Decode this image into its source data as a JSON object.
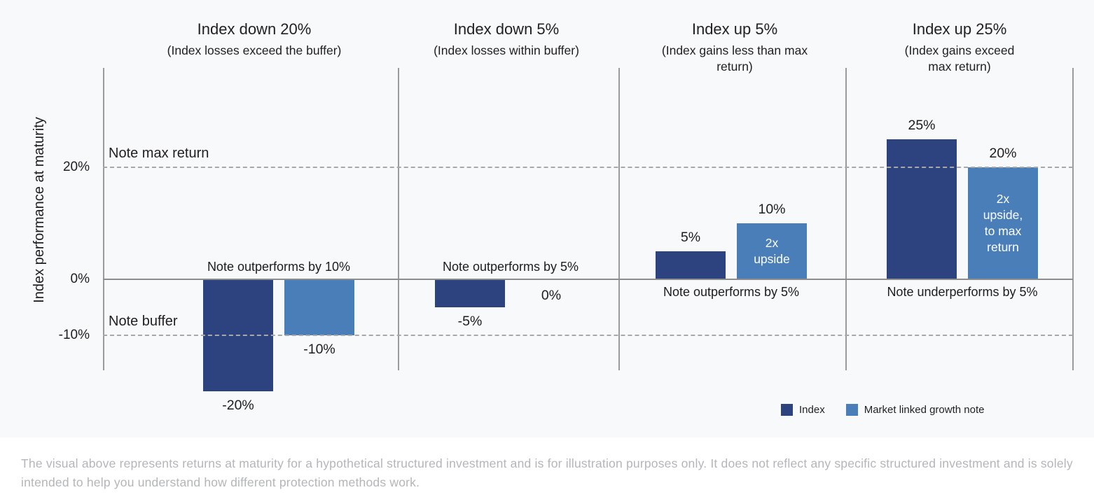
{
  "chart_data": {
    "type": "bar",
    "title": "",
    "ylabel": "Index performance at maturity",
    "ylim": [
      -16.5,
      37.75
    ],
    "grid": "off",
    "legend_position": "bottom-right",
    "yticks": [
      {
        "value": 20,
        "label": "20%"
      },
      {
        "value": 0,
        "label": "0%"
      },
      {
        "value": -10,
        "label": "-10%"
      }
    ],
    "reference_lines": [
      {
        "value": 20,
        "label": "Note max return"
      },
      {
        "value": -10,
        "label": "Note buffer"
      }
    ],
    "series": [
      {
        "name": "Index",
        "color": "#2c4380"
      },
      {
        "name": "Market linked growth note",
        "color": "#4a7eb8"
      }
    ],
    "panels": [
      {
        "title": "Index down 20%",
        "subtitle": "(Index losses exceed the buffer)",
        "index": {
          "value": -20,
          "label": "-20%"
        },
        "note": {
          "value": -10,
          "label": "-10%",
          "bar_text": ""
        },
        "annotation": {
          "text": "Note outperforms by 10%",
          "position": "above"
        }
      },
      {
        "title": "Index down 5%",
        "subtitle": "(Index losses within buffer)",
        "index": {
          "value": -5,
          "label": "-5%"
        },
        "note": {
          "value": 0,
          "label": "0%",
          "bar_text": ""
        },
        "annotation": {
          "text": "Note outperforms by 5%",
          "position": "above"
        }
      },
      {
        "title": "Index up 5%",
        "subtitle": "(Index gains less than max\nreturn)",
        "index": {
          "value": 5,
          "label": "5%"
        },
        "note": {
          "value": 10,
          "label": "10%",
          "bar_text": "2x\nupside"
        },
        "annotation": {
          "text": "Note outperforms by 5%",
          "position": "below"
        }
      },
      {
        "title": "Index up 25%",
        "subtitle": "(Index gains exceed\nmax return)",
        "index": {
          "value": 25,
          "label": "25%"
        },
        "note": {
          "value": 20,
          "label": "20%",
          "bar_text": "2x\nupside,\nto max\nreturn"
        },
        "annotation": {
          "text": "Note underperforms by 5%",
          "position": "below"
        }
      }
    ]
  },
  "footer": {
    "text": "The visual above represents returns at maturity for a hypothetical structured investment and is for illustration purposes only. It does not reflect any specific structured investment and is solely intended to help you understand how different protection methods work."
  }
}
